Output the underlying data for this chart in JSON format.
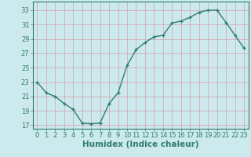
{
  "x": [
    0,
    1,
    2,
    3,
    4,
    5,
    6,
    7,
    8,
    9,
    10,
    11,
    12,
    13,
    14,
    15,
    16,
    17,
    18,
    19,
    20,
    21,
    22,
    23
  ],
  "y": [
    23,
    21.5,
    21.0,
    20.0,
    19.2,
    17.3,
    17.2,
    17.3,
    20.0,
    21.5,
    25.3,
    27.5,
    28.5,
    29.3,
    29.5,
    31.2,
    31.5,
    32.0,
    32.7,
    33.0,
    33.0,
    31.3,
    29.5,
    27.7
  ],
  "xlabel": "Humidex (Indice chaleur)",
  "bg_color": "#cce9ed",
  "grid_color": "#c0d8dc",
  "line_color": "#2e7d6e",
  "marker_color": "#2e7d6e",
  "xlim": [
    -0.5,
    23.5
  ],
  "ylim": [
    16.5,
    34.2
  ],
  "yticks": [
    17,
    19,
    21,
    23,
    25,
    27,
    29,
    31,
    33
  ],
  "xticks": [
    0,
    1,
    2,
    3,
    4,
    5,
    6,
    7,
    8,
    9,
    10,
    11,
    12,
    13,
    14,
    15,
    16,
    17,
    18,
    19,
    20,
    21,
    22,
    23
  ],
  "xlabel_fontsize": 7.5,
  "tick_fontsize": 6.0,
  "line_width": 1.0,
  "marker_size": 3.5
}
